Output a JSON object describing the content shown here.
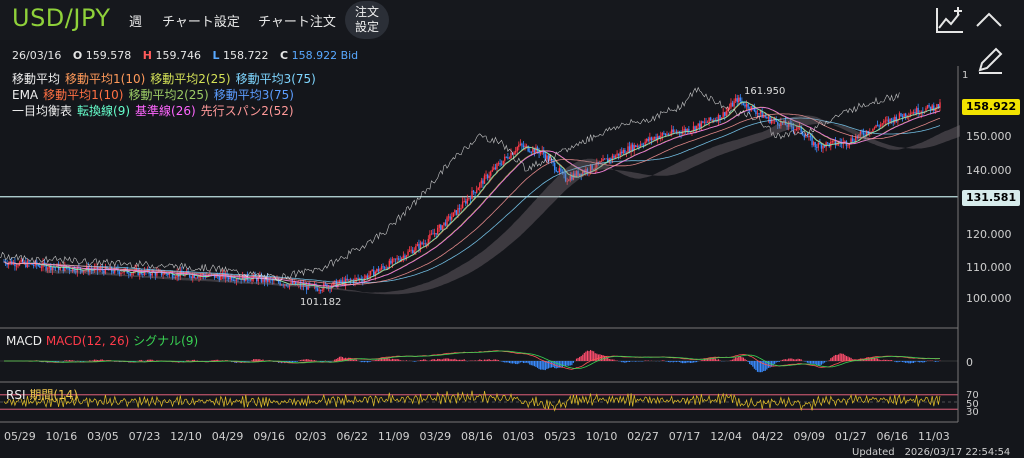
{
  "header": {
    "symbol": "USD/JPY",
    "timeframe": "週",
    "chart_settings": "チャート設定",
    "chart_order": "チャート注文",
    "order_settings_line1": "注文",
    "order_settings_line2": "設定"
  },
  "ohlc": {
    "date": "26/03/16",
    "o_label": "O",
    "o": "159.578",
    "h_label": "H",
    "h": "159.746",
    "l_label": "L",
    "l": "158.722",
    "c_label": "C",
    "c": "158.922",
    "bid": "Bid"
  },
  "legend_sma": {
    "title": "移動平均",
    "a": "移動平均1(10)",
    "b": "移動平均2(25)",
    "c": "移動平均3(75)"
  },
  "legend_ema": {
    "title": "EMA",
    "a": "移動平均1(10)",
    "b": "移動平均2(25)",
    "c": "移動平均3(75)"
  },
  "legend_ichimoku": {
    "title": "一目均衡表",
    "a": "転換線(9)",
    "b": "基準線(26)",
    "c": "先行スパン2(52)"
  },
  "price_axis": {
    "top_label": "1",
    "labels": [
      "150.000",
      "140.000",
      "120.000",
      "110.000",
      "100.000"
    ],
    "current_price": "158.922",
    "hline_price": "131.581"
  },
  "annotations": {
    "high": "161.950",
    "low": "101.182"
  },
  "macd": {
    "title": "MACD",
    "macd_label": "MACD(12, 26)",
    "signal_label": "シグナル(9)",
    "zero_label": "0"
  },
  "rsi": {
    "title": "RSI",
    "period_label": "期間(14)",
    "levels": [
      "70",
      "50",
      "30"
    ]
  },
  "x_axis": [
    "05/29",
    "10/16",
    "03/05",
    "07/23",
    "12/10",
    "04/29",
    "09/16",
    "02/03",
    "06/22",
    "11/09",
    "03/29",
    "08/16",
    "01/03",
    "05/23",
    "10/10",
    "02/27",
    "07/17",
    "12/04",
    "04/22",
    "09/09",
    "01/27",
    "06/16",
    "11/03"
  ],
  "footer": {
    "updated": "Updated　2026/03/17 22:54:54"
  },
  "colors": {
    "symbol": "#8fd13a",
    "up": "#ff3b4a",
    "down": "#3a8cff",
    "sma1": "#ff9a5a",
    "sma2": "#d4e157",
    "sma3": "#7fd6ff",
    "ema1": "#ff7043",
    "ema2": "#9ccc65",
    "ema3": "#5c9dff",
    "tenkan": "#66ffcc",
    "kijun": "#ff66ff",
    "senkou2": "#ff9999",
    "price_tag": "#f2e300",
    "hline": "#bfe3e3"
  },
  "chart_data": {
    "type": "candlestick",
    "ylim": [
      95,
      165
    ],
    "current": 158.922,
    "hline": 131.581,
    "high_point": 161.95,
    "low_point": 101.182,
    "trend_anchors": [
      [
        0,
        112
      ],
      [
        40,
        110
      ],
      [
        80,
        109
      ],
      [
        120,
        108
      ],
      [
        160,
        107
      ],
      [
        200,
        104
      ],
      [
        230,
        107
      ],
      [
        250,
        112
      ],
      [
        270,
        118
      ],
      [
        290,
        127
      ],
      [
        310,
        138
      ],
      [
        330,
        147
      ],
      [
        345,
        145
      ],
      [
        360,
        137
      ],
      [
        380,
        141
      ],
      [
        400,
        146
      ],
      [
        420,
        150
      ],
      [
        440,
        152
      ],
      [
        460,
        156
      ],
      [
        470,
        161
      ],
      [
        490,
        155
      ],
      [
        510,
        152
      ],
      [
        520,
        147
      ],
      [
        540,
        148
      ],
      [
        560,
        153
      ],
      [
        580,
        157
      ],
      [
        600,
        159
      ]
    ]
  }
}
